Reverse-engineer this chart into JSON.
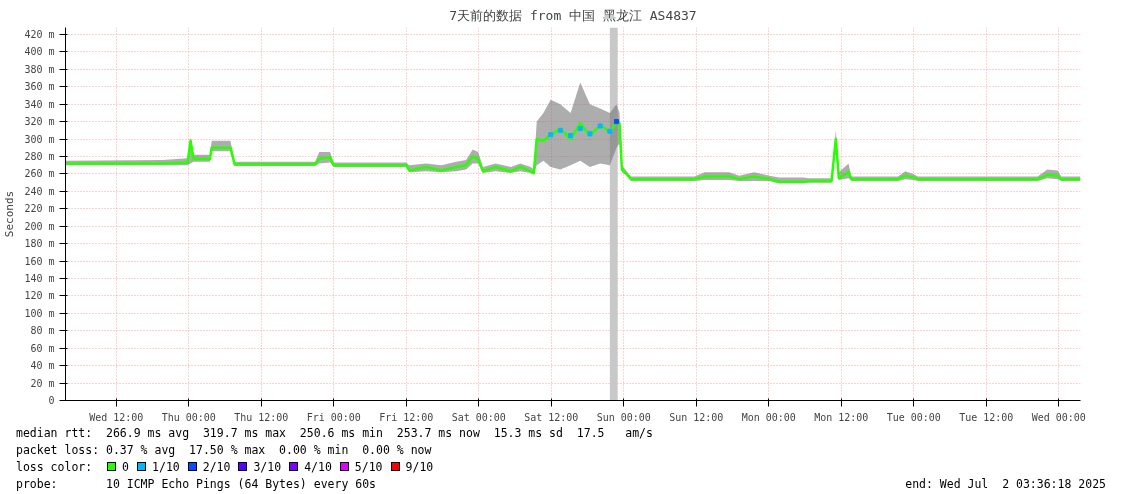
{
  "chart_data": {
    "type": "line",
    "title": "7天前的数据 from 中国 黑龙江 AS4837",
    "ylabel": "Seconds",
    "legend_title": "loss color:",
    "legend": "bottom",
    "grid": true,
    "xlim": [
      "2025-06-25T03:36",
      "2025-07-02T03:36"
    ],
    "ylim": [
      0,
      428
    ],
    "xticks": [
      {
        "value": "2025-06-25T12:00",
        "label": "Wed 12:00"
      },
      {
        "value": "2025-06-26T00:00",
        "label": "Thu 00:00"
      },
      {
        "value": "2025-06-26T12:00",
        "label": "Thu 12:00"
      },
      {
        "value": "2025-06-27T00:00",
        "label": "Fri 00:00"
      },
      {
        "value": "2025-06-27T12:00",
        "label": "Fri 12:00"
      },
      {
        "value": "2025-06-28T00:00",
        "label": "Sat 00:00"
      },
      {
        "value": "2025-06-28T12:00",
        "label": "Sat 12:00"
      },
      {
        "value": "2025-06-29T00:00",
        "label": "Sun 00:00"
      },
      {
        "value": "2025-06-29T12:00",
        "label": "Sun 12:00"
      },
      {
        "value": "2025-06-30T00:00",
        "label": "Mon 00:00"
      },
      {
        "value": "2025-06-30T12:00",
        "label": "Mon 12:00"
      },
      {
        "value": "2025-07-01T00:00",
        "label": "Tue 00:00"
      },
      {
        "value": "2025-07-01T12:00",
        "label": "Tue 12:00"
      },
      {
        "value": "2025-07-02T00:00",
        "label": "Wed 00:00"
      }
    ],
    "yticks": [
      0,
      {
        "value": 20,
        "label": "20 m"
      },
      {
        "value": 40,
        "label": "40 m"
      },
      {
        "value": 60,
        "label": "60 m"
      },
      {
        "value": 80,
        "label": "80 m"
      },
      {
        "value": 100,
        "label": "100 m"
      },
      {
        "value": 120,
        "label": "120 m"
      },
      {
        "value": 140,
        "label": "140 m"
      },
      {
        "value": 160,
        "label": "160 m"
      },
      {
        "value": 180,
        "label": "180 m"
      },
      {
        "value": 200,
        "label": "200 m"
      },
      {
        "value": 220,
        "label": "220 m"
      },
      {
        "value": 240,
        "label": "240 m"
      },
      {
        "value": 260,
        "label": "260 m"
      },
      {
        "value": 280,
        "label": "280 m"
      },
      {
        "value": 300,
        "label": "300 m"
      },
      {
        "value": 320,
        "label": "320 m"
      },
      {
        "value": 340,
        "label": "340 m"
      },
      {
        "value": 360,
        "label": "360 m"
      },
      {
        "value": 380,
        "label": "380 m"
      },
      {
        "value": 400,
        "label": "400 m"
      },
      {
        "value": 420,
        "label": "420 m"
      }
    ],
    "bands": [
      {
        "axis": "x",
        "from": "2025-06-28T21:42",
        "to": "2025-06-28T23:00",
        "color": "#c8c8c8"
      }
    ],
    "series": [
      {
        "name": "0",
        "color": "#26ff00",
        "x": [
          "2025-06-25T03:36",
          "2025-06-25T19:42",
          "2025-06-25T23:48",
          "2025-06-26T00:18",
          "2025-06-26T00:48",
          "2025-06-26T03:30",
          "2025-06-26T03:48",
          "2025-06-26T06:54",
          "2025-06-26T07:36",
          "2025-06-26T20:54",
          "2025-06-26T21:36",
          "2025-06-26T23:24",
          "2025-06-27T00:00",
          "2025-06-27T12:00",
          "2025-06-27T12:30",
          "2025-06-27T15:18",
          "2025-06-27T17:48",
          "2025-06-27T20:18",
          "2025-06-27T21:54",
          "2025-06-27T23:00",
          "2025-06-27T23:54",
          "2025-06-28T00:42",
          "2025-06-28T02:48",
          "2025-06-28T05:18",
          "2025-06-28T06:54",
          "2025-06-28T08:36",
          "2025-06-28T09:06",
          "2025-06-28T09:36",
          "2025-06-28T10:42",
          "2025-06-28T11:54",
          "2025-06-28T13:30",
          "2025-06-28T15:12",
          "2025-06-28T16:48",
          "2025-06-28T18:24",
          "2025-06-28T20:06",
          "2025-06-28T21:42",
          "2025-06-28T22:48",
          "2025-06-28T23:18",
          "2025-06-28T23:42",
          "2025-06-29T00:30",
          "2025-06-29T01:12",
          "2025-06-29T11:42",
          "2025-06-29T13:24",
          "2025-06-29T17:30",
          "2025-06-29T19:06",
          "2025-06-29T21:36",
          "2025-06-30T00:06",
          "2025-06-30T01:42",
          "2025-06-30T05:48",
          "2025-06-30T06:36",
          "2025-06-30T10:24",
          "2025-06-30T11:06",
          "2025-06-30T11:36",
          "2025-06-30T13:12",
          "2025-06-30T13:42",
          "2025-06-30T21:24",
          "2025-06-30T22:36",
          "2025-06-30T23:54",
          "2025-07-01T00:42",
          "2025-07-01T20:30",
          "2025-07-01T22:06",
          "2025-07-01T23:48",
          "2025-07-02T00:24",
          "2025-07-02T03:36"
        ],
        "values": [
          272,
          272,
          273,
          298,
          277,
          277,
          290,
          290,
          271,
          271,
          277,
          279,
          270,
          270,
          264,
          268,
          264,
          268,
          270,
          280,
          277,
          263,
          268,
          263,
          268,
          263,
          261,
          300,
          298,
          305,
          312,
          300,
          318,
          304,
          316,
          308,
          320,
          318,
          265,
          260,
          254,
          254,
          257,
          257,
          254,
          257,
          254,
          251,
          251,
          252,
          252,
          300,
          255,
          262,
          254,
          254,
          258,
          256,
          254,
          254,
          259,
          258,
          254,
          254
        ],
        "lower": [
          270,
          270,
          270,
          272,
          274,
          274,
          286,
          286,
          269,
          269,
          272,
          273,
          268,
          268,
          262,
          263,
          262,
          263,
          265,
          272,
          272,
          261,
          263,
          261,
          263,
          261,
          259,
          270,
          275,
          268,
          265,
          270,
          275,
          268,
          272,
          270,
          290,
          295,
          262,
          258,
          252,
          252,
          253,
          253,
          252,
          252,
          252,
          249,
          249,
          250,
          250,
          290,
          253,
          255,
          252,
          252,
          254,
          253,
          252,
          252,
          255,
          254,
          252,
          252
        ],
        "upper": [
          275,
          276,
          278,
          302,
          282,
          282,
          298,
          298,
          274,
          274,
          285,
          285,
          273,
          273,
          270,
          272,
          270,
          274,
          276,
          288,
          285,
          268,
          272,
          268,
          272,
          268,
          265,
          320,
          330,
          345,
          340,
          330,
          365,
          340,
          335,
          330,
          340,
          330,
          270,
          263,
          257,
          257,
          262,
          262,
          258,
          262,
          258,
          256,
          256,
          255,
          255,
          310,
          262,
          272,
          257,
          257,
          263,
          260,
          257,
          257,
          265,
          264,
          257,
          257
        ]
      },
      {
        "name": "1/10",
        "type": "scatter",
        "color": "#00b8ff",
        "x": [
          "2025-06-28T11:54",
          "2025-06-28T13:30",
          "2025-06-28T15:12",
          "2025-06-28T16:48",
          "2025-06-28T18:24",
          "2025-06-28T20:06",
          "2025-06-28T21:42"
        ],
        "values": [
          305,
          310,
          304,
          312,
          306,
          315,
          309
        ]
      },
      {
        "name": "2/10",
        "type": "scatter",
        "color": "#0050ff",
        "x": [
          "2025-06-28T22:48"
        ],
        "values": [
          320
        ]
      },
      {
        "name": "3/10",
        "type": "scatter",
        "color": "#5a00ff"
      },
      {
        "name": "4/10",
        "type": "scatter",
        "color": "#8000ff"
      },
      {
        "name": "5/10",
        "type": "scatter",
        "color": "#e000ff"
      },
      {
        "name": "9/10",
        "type": "scatter",
        "color": "#ff0000"
      }
    ],
    "annotations": [
      "median rtt:  266.9 ms avg  319.7 ms max  250.6 ms min  253.7 ms now  15.3 ms sd  17.5   am/s",
      "packet loss: 0.37 % avg  17.50 % max  0.00 % min  0.00 % now",
      "probe:       10 ICMP Echo Pings (64 Bytes) every 60s",
      "end: Wed Jul  2 03:36:18 2025"
    ]
  }
}
